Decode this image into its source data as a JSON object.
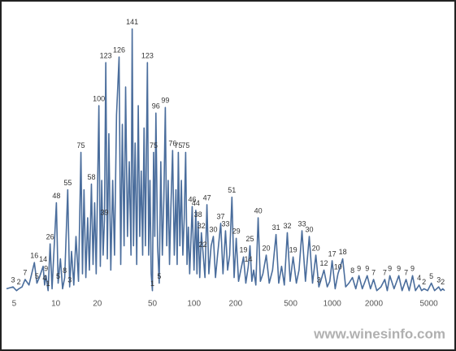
{
  "chart_data": {
    "type": "line",
    "xscale": "log",
    "xlim": [
      4.4,
      6500
    ],
    "ylim": [
      0,
      150
    ],
    "xticks": [
      5,
      10,
      20,
      50,
      100,
      200,
      500,
      1000,
      2000,
      5000
    ],
    "x": [
      4.4,
      4.9,
      5.2,
      5.4,
      5.7,
      6.0,
      6.4,
      7.0,
      7.3,
      7.6,
      8.1,
      8.3,
      8.5,
      8.8,
      9.1,
      9.4,
      10.1,
      10.4,
      10.8,
      11.2,
      11.6,
      12.2,
      12.6,
      13,
      13.5,
      14,
      14.6,
      15.2,
      15.6,
      16,
      16.5,
      17,
      17.5,
      18.1,
      18.6,
      19.1,
      19.6,
      20.5,
      21,
      21.5,
      22,
      22.5,
      23,
      23.6,
      24.2,
      25,
      25.8,
      26.6,
      27.5,
      28.7,
      29.5,
      30.3,
      31.2,
      32,
      33,
      34,
      35,
      35.7,
      36.5,
      37.5,
      38.5,
      39.5,
      40.5,
      41.5,
      42.5,
      43.5,
      44.5,
      46,
      47,
      48,
      49,
      50,
      51,
      52,
      53,
      54.5,
      56,
      57.5,
      59,
      60.5,
      62,
      63.5,
      65,
      66.5,
      68,
      70,
      72,
      74,
      75.5,
      77,
      79,
      81,
      83,
      85,
      87,
      89,
      91,
      93,
      95,
      97,
      100,
      103,
      105,
      107,
      110,
      113,
      116,
      120,
      124,
      128,
      133,
      138,
      143,
      148,
      156,
      162,
      169,
      175,
      181,
      188,
      195,
      202,
      210,
      218,
      228,
      237,
      247,
      254,
      262,
      270,
      280,
      291,
      302,
      315,
      333,
      350,
      370,
      392,
      410,
      430,
      450,
      473,
      496,
      521,
      550,
      575,
      604,
      640,
      682,
      720,
      761,
      800,
      840,
      871,
      920,
      960,
      998,
      1050,
      1100,
      1190,
      1250,
      1320,
      1400,
      1480,
      1560,
      1650,
      1790,
      1890,
      1990,
      2100,
      2250,
      2400,
      2500,
      2610,
      2800,
      3030,
      3200,
      3420,
      3600,
      3810,
      4000,
      4250,
      4430,
      4610,
      4900,
      5210,
      5500,
      5890,
      6100,
      6300,
      6500
    ],
    "series": [
      {
        "color": "#4a6d9c",
        "values": [
          2,
          3,
          1,
          2,
          3,
          7,
          4,
          16,
          5,
          8,
          14,
          4,
          9,
          1,
          26,
          2,
          48,
          5,
          18,
          2,
          8,
          55,
          3,
          22,
          4,
          30,
          6,
          75,
          10,
          55,
          8,
          40,
          12,
          58,
          15,
          48,
          10,
          100,
          14,
          60,
          20,
          39,
          123,
          18,
          85,
          12,
          60,
          20,
          95,
          126,
          15,
          90,
          25,
          110,
          30,
          70,
          20,
          141,
          25,
          80,
          15,
          100,
          30,
          65,
          20,
          88,
          25,
          123,
          20,
          60,
          10,
          1,
          75,
          30,
          96,
          25,
          5,
          70,
          20,
          50,
          99,
          25,
          60,
          15,
          45,
          76,
          20,
          55,
          15,
          75,
          25,
          60,
          20,
          40,
          75,
          15,
          35,
          10,
          28,
          46,
          12,
          44,
          10,
          38,
          8,
          32,
          22,
          8,
          47,
          10,
          25,
          30,
          8,
          20,
          37,
          10,
          33,
          12,
          20,
          51,
          8,
          29,
          6,
          12,
          19,
          5,
          14,
          25,
          6,
          12,
          4,
          40,
          6,
          10,
          20,
          5,
          12,
          31,
          5,
          14,
          4,
          32,
          6,
          19,
          5,
          12,
          33,
          6,
          30,
          5,
          20,
          3,
          8,
          12,
          3,
          6,
          17,
          2,
          10,
          18,
          3,
          5,
          8,
          2,
          9,
          2,
          9,
          2,
          7,
          1,
          3,
          7,
          1,
          9,
          2,
          9,
          1,
          7,
          1,
          9,
          1,
          4,
          1,
          2,
          1,
          5,
          1,
          3,
          1,
          2,
          1
        ],
        "value_labels": [
          null,
          "3",
          null,
          "2",
          null,
          "7",
          null,
          "16",
          "5",
          null,
          "14",
          "4",
          "9",
          "1",
          "26",
          null,
          "48",
          "5",
          null,
          null,
          "8",
          "55",
          "3",
          null,
          null,
          null,
          null,
          "75",
          null,
          null,
          null,
          null,
          null,
          "58",
          null,
          null,
          null,
          "100",
          null,
          null,
          null,
          "39",
          "123",
          null,
          null,
          null,
          null,
          null,
          null,
          "126",
          null,
          null,
          null,
          null,
          null,
          null,
          null,
          "141",
          null,
          null,
          null,
          null,
          null,
          null,
          null,
          null,
          null,
          "123",
          null,
          null,
          null,
          "1",
          "75",
          null,
          "96",
          null,
          "5",
          null,
          null,
          null,
          "99",
          null,
          null,
          null,
          null,
          "76",
          null,
          null,
          null,
          "75",
          null,
          null,
          null,
          null,
          "75",
          null,
          null,
          null,
          null,
          "46",
          null,
          "44",
          null,
          "38",
          null,
          "32",
          "22",
          null,
          "47",
          null,
          null,
          "30",
          null,
          null,
          "37",
          null,
          "33",
          null,
          null,
          "51",
          null,
          "29",
          null,
          null,
          "19",
          null,
          "14",
          "25",
          null,
          null,
          null,
          "40",
          null,
          null,
          "20",
          null,
          null,
          "31",
          null,
          null,
          null,
          "32",
          null,
          "19",
          null,
          null,
          "33",
          null,
          "30",
          null,
          "20",
          "3",
          null,
          "12",
          null,
          null,
          "17",
          null,
          "10",
          "18",
          null,
          null,
          "8",
          null,
          "9",
          null,
          "9",
          null,
          "7",
          null,
          null,
          "7",
          null,
          "9",
          null,
          "9",
          null,
          "7",
          null,
          "9",
          null,
          "4",
          null,
          "2",
          null,
          "5",
          null,
          "3",
          null,
          "2",
          null
        ]
      }
    ],
    "watermark": "www.winesinfo.com"
  }
}
